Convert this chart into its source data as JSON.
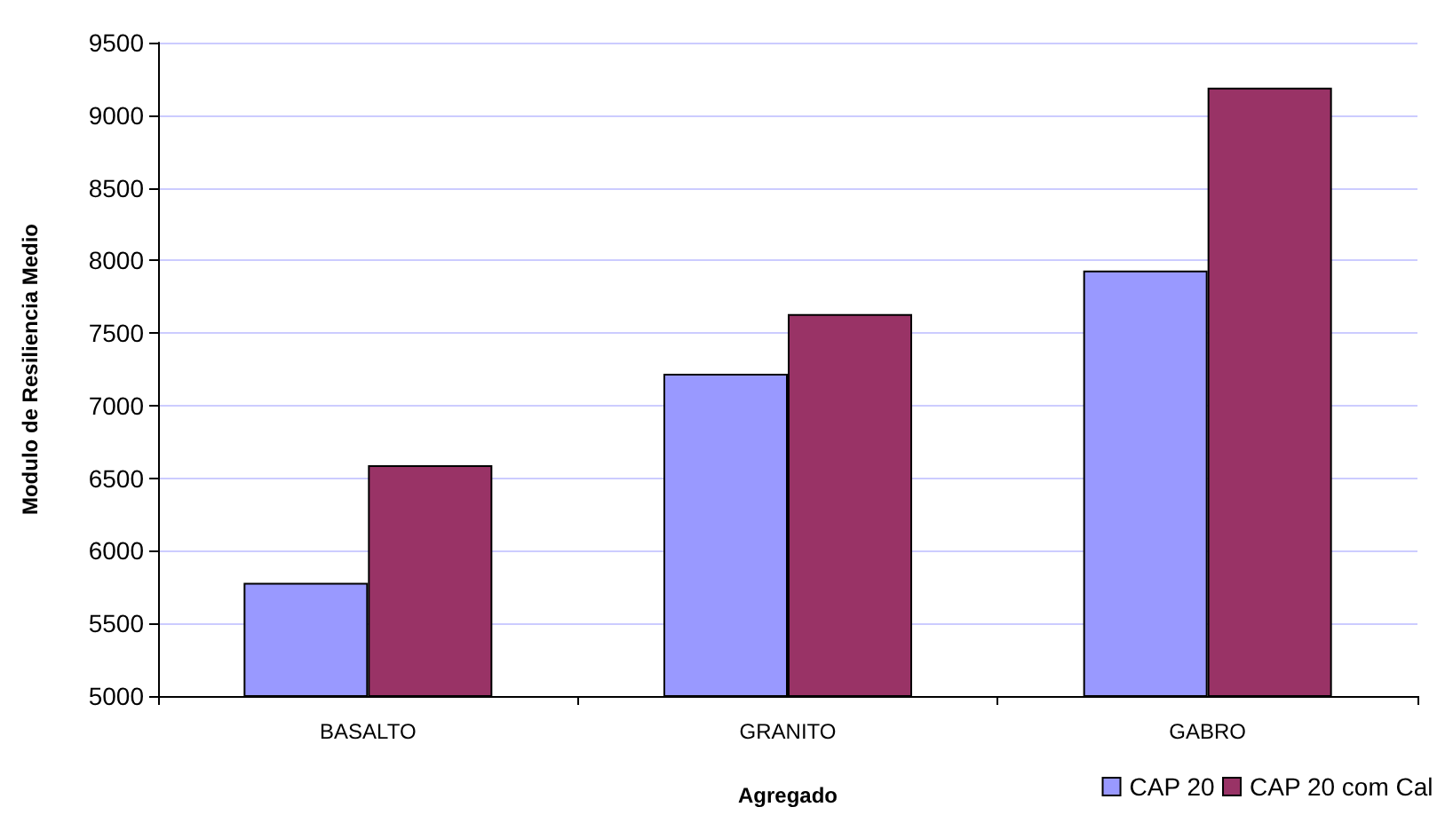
{
  "chart_data": {
    "type": "bar",
    "xlabel": "Agregado",
    "ylabel": "Modulo de Resiliencia Medio",
    "categories": [
      "BASALTO",
      "GRANITO",
      "GABRO"
    ],
    "series": [
      {
        "name": "CAP 20",
        "color": "#9999ff",
        "values": [
          5780,
          7220,
          7930
        ]
      },
      {
        "name": "CAP 20 com Cal",
        "color": "#993366",
        "values": [
          6590,
          7630,
          9190
        ]
      }
    ],
    "ylim": [
      5000,
      9500
    ],
    "yticks": [
      5000,
      5500,
      6000,
      6500,
      7000,
      7500,
      8000,
      8500,
      9000,
      9500
    ],
    "grid": "y",
    "legend": "bottom right"
  }
}
